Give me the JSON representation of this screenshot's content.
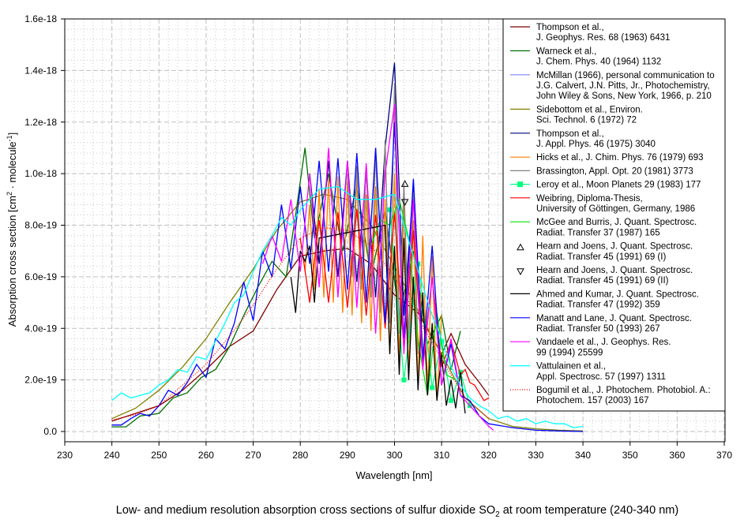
{
  "chart_data": {
    "type": "line",
    "title": "",
    "caption": {
      "prefix": "Low- and medium resolution absorption cross sections of sulfur dioxide SO",
      "subscript": "2",
      "suffix": " at room temperature (240-340 nm)"
    },
    "xlabel": "Wavelength [nm]",
    "ylabel": {
      "main": "Absorption cross section [cm",
      "sup1": "2",
      "mid": " · molecule",
      "sup2": "-1",
      "end": "]"
    },
    "xlim": [
      230,
      370
    ],
    "ylim": [
      0,
      1.6e-18
    ],
    "xticks": [
      230,
      240,
      250,
      260,
      270,
      280,
      290,
      300,
      310,
      320,
      330,
      340,
      350,
      360,
      370
    ],
    "xtick_labels": [
      "230",
      "240",
      "250",
      "260",
      "270",
      "280",
      "290",
      "300",
      "310",
      "320",
      "330",
      "340",
      "350",
      "360",
      "370"
    ],
    "yticks": [
      0,
      2e-19,
      4e-19,
      6e-19,
      8e-19,
      1e-18,
      1.2e-18,
      1.4e-18,
      1.6e-18
    ],
    "ytick_labels": [
      "0.0",
      "2.0e-19",
      "4.0e-19",
      "6.0e-19",
      "8.0e-19",
      "1.0e-18",
      "1.2e-18",
      "1.4e-18",
      "1.6e-18"
    ],
    "grid": true,
    "legend_position": "top-right",
    "series": [
      {
        "name": "Thompson et al., J. Geophys. Res. 68 (1963) 6431",
        "legend": [
          "Thompson et al.,",
          "J. Geophys. Res. 68 (1963) 6431"
        ],
        "color": "#800000",
        "style": "line",
        "x": [
          240,
          245,
          250,
          255,
          260,
          265,
          270,
          275,
          280,
          285,
          290,
          295,
          300,
          305,
          310,
          312,
          315,
          318,
          320
        ],
        "y": [
          4e-20,
          7e-20,
          1e-19,
          1.6e-19,
          2.4e-19,
          3.3e-19,
          3.9e-19,
          5.5e-19,
          6.8e-19,
          7e-19,
          7.1e-19,
          6.5e-19,
          5.3e-19,
          4.6e-19,
          3e-19,
          3.8e-19,
          2.6e-19,
          1.9e-19,
          1.4e-19
        ]
      },
      {
        "name": "Warneck et al., J. Chem. Phys. 40 (1964) 1132",
        "legend": [
          "Warneck et al.,",
          "J. Chem. Phys. 40 (1964) 1132"
        ],
        "color": "#007000",
        "style": "line",
        "x": [
          240,
          243,
          246,
          250,
          253,
          256,
          259,
          262,
          265,
          268,
          271,
          274,
          277,
          279,
          281,
          283,
          286,
          289,
          292,
          295,
          298,
          301,
          304,
          307,
          310,
          312,
          314
        ],
        "y": [
          1.8e-20,
          1.8e-20,
          6e-20,
          7e-20,
          1.3e-19,
          1.5e-19,
          2.1e-19,
          2.4e-19,
          3.3e-19,
          4.5e-19,
          5.6e-19,
          6.6e-19,
          6e-19,
          8.4e-19,
          1.1e-18,
          7.5e-19,
          1e-18,
          7e-19,
          9.6e-19,
          6e-19,
          8.6e-19,
          4.5e-19,
          7e-19,
          3.4e-19,
          4.5e-19,
          2.4e-19,
          3.9e-19
        ]
      },
      {
        "name": "McMillan (1966), personal communication to J.G. Calvert, J.N. Pitts, Jr., Photochemistry, John Wiley & Sons, New York, 1966, p. 210",
        "legend": [
          "McMillan (1966), personal communication to",
          "J.G. Calvert, J.N. Pitts, Jr., Photochemistry,",
          "John Wiley & Sons, New York, 1966, p. 210"
        ],
        "color": "#8080ff",
        "style": "line",
        "x": [],
        "y": []
      },
      {
        "name": "Sidebottom et al., Environ. Sci. Technol. 6 (1972) 72",
        "legend": [
          "Sidebottom et al., Environ.",
          "Sci. Technol. 6 (1972) 72"
        ],
        "color": "#808000",
        "style": "line",
        "x": [
          240,
          245,
          250,
          255,
          260,
          265,
          270,
          275,
          280,
          285,
          290,
          295,
          300,
          305,
          310,
          315,
          320,
          325,
          330,
          335,
          340
        ],
        "y": [
          5e-20,
          9e-20,
          1.6e-19,
          2.5e-19,
          3.6e-19,
          5e-19,
          6.3e-19,
          7.8e-19,
          8.9e-19,
          9.2e-19,
          9e-19,
          8e-19,
          6.4e-19,
          4.7e-19,
          3e-19,
          1.3e-19,
          5e-20,
          2e-20,
          1e-20,
          5e-21,
          2e-21
        ]
      },
      {
        "name": "Thompson et al., J. Appl. Phys. 46 (1975) 3040",
        "legend": [
          "Thompson et al.,",
          "J. Appl. Phys. 46 (1975) 3040"
        ],
        "color": "#000080",
        "style": "line",
        "x": [
          282,
          284,
          286,
          288,
          290,
          292,
          294,
          296,
          298,
          300,
          302,
          304,
          306
        ],
        "y": [
          1e-18,
          6.5e-19,
          1.05e-18,
          6e-19,
          1.05e-18,
          5.8e-19,
          1e-18,
          5.2e-19,
          1.1e-18,
          1.43e-18,
          4.5e-19,
          9.5e-19,
          3e-19
        ]
      },
      {
        "name": "Hicks et al., J. Chim. Phys. 76 (1979) 693",
        "legend": [
          "Hicks et al., J. Chim. Phys. 76 (1979) 693"
        ],
        "color": "#ff8000",
        "style": "line",
        "x": [
          281,
          282,
          283,
          284,
          285,
          286,
          287,
          288,
          289,
          290,
          291,
          292,
          293,
          294,
          295,
          296,
          297,
          298,
          299,
          300,
          301,
          302,
          303,
          304,
          305,
          306,
          307,
          308,
          309,
          310
        ],
        "y": [
          6.2e-19,
          8.8e-19,
          5.5e-19,
          9.4e-19,
          5.2e-19,
          9.8e-19,
          5e-19,
          9.9e-19,
          4.6e-19,
          9.7e-19,
          4.5e-19,
          1e-18,
          4.2e-19,
          9.2e-19,
          3.9e-19,
          9.5e-19,
          3.5e-19,
          9e-19,
          3e-19,
          1e-18,
          2.8e-19,
          8.8e-19,
          2.2e-19,
          8.2e-19,
          1.8e-19,
          7.6e-19,
          1.6e-19,
          6.8e-19,
          1.2e-19,
          4.5e-19
        ]
      },
      {
        "name": "Brassington, Appl. Opt. 20 (1981) 3773",
        "legend": [
          "Brassington, Appl. Opt. 20 (1981) 3773"
        ],
        "color": "#808080",
        "style": "line",
        "x": [
          290,
          291,
          292,
          293,
          294,
          295,
          296,
          297,
          298,
          299,
          300,
          301,
          302,
          303,
          304,
          305
        ],
        "y": [
          1e-18,
          6e-19,
          1.03e-18,
          5.5e-19,
          1.04e-18,
          5.2e-19,
          1.1e-18,
          4.6e-19,
          1.13e-18,
          4.2e-19,
          1.35e-18,
          3.8e-19,
          9.6e-19,
          3.6e-19,
          9.3e-19,
          3e-19
        ]
      },
      {
        "name": "Leroy et al., Moon Planets 29 (1983) 177",
        "legend": [
          "Leroy et al., Moon Planets 29 (1983) 177"
        ],
        "color": "#00ff80",
        "style": "line-marker-square",
        "x": [
          299,
          302,
          305,
          308,
          310,
          312,
          314,
          316
        ],
        "y": [
          8.6e-19,
          2e-19,
          6.5e-19,
          1.7e-19,
          3.5e-19,
          1.2e-19,
          2.3e-19,
          1e-19
        ]
      },
      {
        "name": "Weibring, Diploma-Thesis, University of Göttingen, Germany, 1986",
        "legend": [
          "Weibring, Diploma-Thesis,",
          "University of Göttingen, Germany, 1986"
        ],
        "color": "#ff0000",
        "style": "line",
        "x": [
          280,
          282,
          284,
          286,
          288,
          290,
          292,
          294,
          296,
          298,
          300,
          302,
          304,
          306,
          308,
          310,
          312,
          314,
          315,
          316,
          317,
          318,
          319,
          320
        ],
        "y": [
          7.5e-19,
          5e-19,
          8.2e-19,
          5e-19,
          8.5e-19,
          4.8e-19,
          8.6e-19,
          4.5e-19,
          8.4e-19,
          4e-19,
          8.5e-19,
          3.2e-19,
          7.8e-19,
          2.7e-19,
          6e-19,
          2.5e-19,
          3.5e-19,
          2.2e-19,
          2.4e-19,
          1.9e-19,
          1.8e-19,
          1.5e-19,
          1.2e-19,
          1.3e-19
        ]
      },
      {
        "name": "McGee and Burris, J. Quant. Spectrosc. Radiat. Transfer 37 (1987) 165",
        "legend": [
          "McGee and Burris, J. Quant. Spectrosc.",
          "Radiat. Transfer 37 (1987) 165"
        ],
        "color": "#00e000",
        "style": "line",
        "x": [
          295,
          297,
          299,
          301,
          303,
          305,
          307,
          309,
          311,
          313
        ],
        "y": [
          7.2e-19,
          8.2e-19,
          8e-19,
          9e-19,
          7.5e-19,
          3.5e-19,
          1.4e-19,
          4.6e-19,
          2.2e-19,
          2e-19
        ]
      },
      {
        "name": "Hearn and Joens, J. Quant. Spectrosc. Radiat. Transfer 45 (1991) 69 (I)",
        "legend": [
          "Hearn and Joens, J. Quant. Spectrosc.",
          "Radiat. Transfer 45 (1991) 69 (I)"
        ],
        "color": "#000000",
        "style": "marker-triangle-up",
        "x": [
          302.2
        ],
        "y": [
          9.6e-19
        ]
      },
      {
        "name": "Hearn and Joens, J. Quant. Spectrosc. Radiat. Transfer 45 (1991) 69 (II)",
        "legend": [
          "Hearn and Joens, J. Quant. Spectrosc.",
          "Radiat. Transfer 45 (1991) 69 (II)"
        ],
        "color": "#000000",
        "style": "marker-triangle-down",
        "x": [
          302.2
        ],
        "y": [
          8.9e-19
        ]
      },
      {
        "name": "Ahmed and Kumar, J. Quant. Spectrosc. Radiat. Transfer 47 (1992) 359",
        "legend": [
          "Ahmed and Kumar, J. Quant. Spectrosc.",
          "Radiat. Transfer 47 (1992) 359"
        ],
        "color": "#000000",
        "style": "line",
        "x": [
          278,
          279,
          280,
          281,
          282,
          283,
          284,
          298,
          299,
          300,
          301,
          302,
          303,
          304,
          305,
          306,
          307,
          308,
          309,
          310,
          311,
          312,
          313,
          314,
          315
        ],
        "y": [
          6e-19,
          4.6e-19,
          7e-19,
          6.6e-19,
          7.2e-19,
          5e-19,
          7.5e-19,
          8e-19,
          3e-19,
          7.2e-19,
          2.2e-19,
          7.5e-19,
          2e-19,
          6e-19,
          1.6e-19,
          5.4e-19,
          1.4e-19,
          4.2e-19,
          1.2e-19,
          3e-19,
          1e-19,
          2e-19,
          9e-20,
          2.3e-19,
          7e-20
        ]
      },
      {
        "name": "Manatt and Lane, J. Quant. Spectrosc. Radiat. Transfer 50 (1993) 267",
        "legend": [
          "Manatt and Lane, J. Quant. Spectrosc.",
          "Radiat. Transfer 50 (1993) 267"
        ],
        "color": "#0000ff",
        "style": "line",
        "x": [
          240,
          242,
          244,
          246,
          248,
          250,
          252,
          254,
          256,
          258,
          260,
          262,
          264,
          266,
          268,
          270,
          272,
          274,
          276,
          278,
          280,
          282,
          284,
          286,
          288,
          290,
          292,
          294,
          296,
          298,
          300,
          302,
          304,
          306,
          308,
          310,
          312,
          314,
          316,
          318,
          320,
          325,
          330,
          335,
          340
        ],
        "y": [
          2.5e-20,
          2.5e-20,
          5e-20,
          7e-20,
          6e-20,
          1e-19,
          1.6e-19,
          1.4e-19,
          1.9e-19,
          2.6e-19,
          2.1e-19,
          3.6e-19,
          3.2e-19,
          4.2e-19,
          5.8e-19,
          4.3e-19,
          7e-19,
          6e-19,
          8.8e-19,
          6.3e-19,
          9.5e-19,
          6.5e-19,
          1.05e-18,
          6.2e-19,
          1.06e-18,
          5.5e-19,
          1.08e-18,
          5e-19,
          1.1e-18,
          4.2e-19,
          1.2e-18,
          3.6e-19,
          9.8e-19,
          2.8e-19,
          7.2e-19,
          1.8e-19,
          3.4e-19,
          1.4e-19,
          1.2e-19,
          6e-20,
          3e-20,
          1.5e-20,
          5e-21,
          2e-21,
          0
        ]
      },
      {
        "name": "Vandaele et al., J. Geophys. Res. 99 (1994) 25599",
        "legend": [
          "Vandaele et al., J. Geophys. Res.",
          "99 (1994) 25599"
        ],
        "color": "#ff00ff",
        "style": "line",
        "x": [
          272,
          274,
          276,
          278,
          280,
          282,
          284,
          286,
          288,
          290,
          292,
          294,
          296,
          298,
          300,
          302,
          304,
          306,
          308,
          310,
          312,
          314,
          316,
          318,
          320,
          321
        ],
        "y": [
          6.5e-19,
          7.6e-19,
          6.6e-19,
          9e-19,
          6.2e-19,
          1e-18,
          5.6e-19,
          1.1e-18,
          5.2e-19,
          1.05e-18,
          4.8e-19,
          1.04e-18,
          3.8e-19,
          1e-18,
          1.27e-18,
          3e-19,
          9e-19,
          2.4e-19,
          6e-19,
          1.8e-19,
          3.6e-19,
          1.4e-19,
          1e-19,
          6e-20,
          2e-20,
          5e-21
        ]
      },
      {
        "name": "Vattulainen et al., Appl. Spectrosc. 57 (1997) 1311",
        "legend": [
          "Vattulainen et al.,",
          "Appl. Spectrosc. 57 (1997) 1311"
        ],
        "color": "#00ffff",
        "style": "line",
        "x": [
          240,
          242,
          244,
          246,
          248,
          250,
          252,
          254,
          256,
          258,
          260,
          262,
          264,
          266,
          268,
          270,
          272,
          274,
          276,
          278,
          280,
          284,
          288,
          292,
          296,
          300,
          304,
          308,
          310,
          312,
          314,
          316,
          318,
          320,
          322,
          324,
          326,
          328,
          330,
          332,
          334,
          336,
          338,
          340
        ],
        "y": [
          1.2e-19,
          1.5e-19,
          1.3e-19,
          1.4e-19,
          1.5e-19,
          1.8e-19,
          2e-19,
          2.4e-19,
          2.3e-19,
          2.9e-19,
          2.8e-19,
          3.5e-19,
          4.2e-19,
          5e-19,
          5.3e-19,
          6.2e-19,
          7e-19,
          7.6e-19,
          8.3e-19,
          8e-19,
          8.6e-19,
          9.4e-19,
          9.5e-19,
          9e-19,
          9e-19,
          9.2e-19,
          6.8e-19,
          4.5e-19,
          3.6e-19,
          2.5e-19,
          1.8e-19,
          1.3e-19,
          1e-19,
          8e-20,
          5e-20,
          6e-20,
          4e-20,
          5e-20,
          3e-20,
          4e-20,
          3e-20,
          3e-20,
          1.5e-20,
          2e-20
        ]
      },
      {
        "name": "Bogumil et al., J. Photochem. Photobiol. A.: Photochem. 157 (2003) 167",
        "legend": [
          "Bogumil et al., J. Photochem. Photobiol. A.:",
          "Photochem. 157 (2003) 167"
        ],
        "color": "#ff0000",
        "style": "dotted",
        "x": [
          240,
          245,
          250,
          255,
          260,
          265,
          270,
          275,
          280,
          285,
          290,
          295,
          300,
          305,
          310,
          315,
          320
        ],
        "y": [
          4.5e-20,
          6.5e-20,
          1e-19,
          1.8e-19,
          2.6e-19,
          3.7e-19,
          4.9e-19,
          6.3e-19,
          7.5e-19,
          7.9e-19,
          7.8e-19,
          7.2e-19,
          6e-19,
          4.4e-19,
          2.8e-19,
          1.3e-19,
          5e-20
        ]
      }
    ]
  }
}
